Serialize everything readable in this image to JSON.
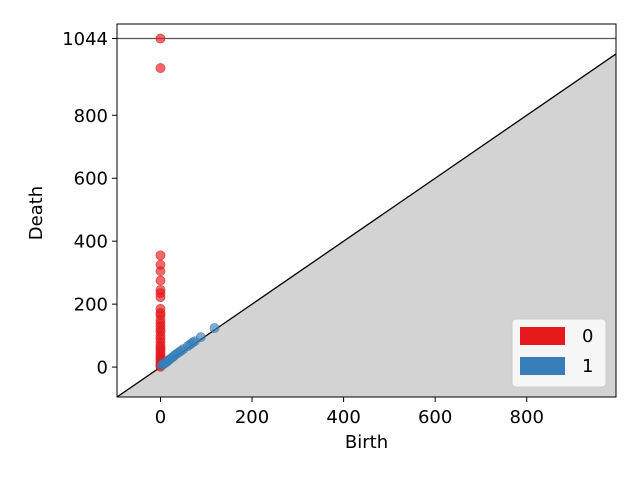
{
  "chart_data": {
    "type": "scatter",
    "title": "",
    "xlabel": "Birth",
    "ylabel": "Death",
    "xlim": [
      -95,
      995
    ],
    "ylim": [
      -95,
      1090
    ],
    "grid": false,
    "legend_position": "bottom-right",
    "x_ticks": [
      0,
      200,
      400,
      600,
      800
    ],
    "y_ticks": [
      0,
      200,
      400,
      600,
      800,
      1044
    ],
    "infinity_line": 1044,
    "diagonal_fill_color": "#d3d3d3",
    "series": [
      {
        "name": "0",
        "color": "#e41a1c",
        "points": [
          [
            0,
            1044
          ],
          [
            0,
            950
          ],
          [
            0,
            355
          ],
          [
            0,
            325
          ],
          [
            0,
            305
          ],
          [
            0,
            275
          ],
          [
            0,
            245
          ],
          [
            0,
            235
          ],
          [
            0,
            222
          ],
          [
            0,
            185
          ],
          [
            0,
            172
          ],
          [
            0,
            165
          ],
          [
            0,
            150
          ],
          [
            0,
            140
          ],
          [
            0,
            130
          ],
          [
            0,
            120
          ],
          [
            0,
            112
          ],
          [
            0,
            100
          ],
          [
            0,
            90
          ],
          [
            0,
            80
          ],
          [
            0,
            70
          ],
          [
            0,
            62
          ],
          [
            0,
            55
          ],
          [
            0,
            48
          ],
          [
            0,
            40
          ],
          [
            0,
            34
          ],
          [
            0,
            28
          ],
          [
            0,
            22
          ],
          [
            0,
            16
          ],
          [
            0,
            10
          ],
          [
            0,
            5
          ],
          [
            0,
            1
          ]
        ]
      },
      {
        "name": "1",
        "color": "#377eb8",
        "points": [
          [
            3,
            6
          ],
          [
            6,
            9
          ],
          [
            9,
            12
          ],
          [
            12,
            15
          ],
          [
            15,
            18
          ],
          [
            18,
            22
          ],
          [
            22,
            27
          ],
          [
            26,
            31
          ],
          [
            30,
            36
          ],
          [
            35,
            42
          ],
          [
            40,
            47
          ],
          [
            45,
            52
          ],
          [
            50,
            57
          ],
          [
            60,
            67
          ],
          [
            65,
            72
          ],
          [
            70,
            78
          ],
          [
            75,
            82
          ],
          [
            88,
            95
          ],
          [
            118,
            124
          ]
        ]
      }
    ]
  }
}
